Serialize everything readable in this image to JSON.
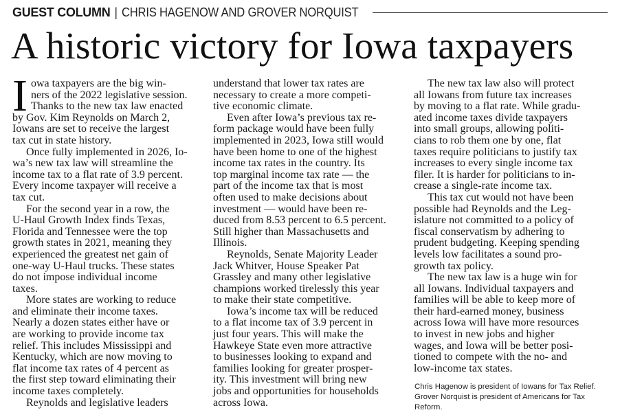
{
  "kicker": {
    "label": "GUEST COLUMN",
    "separator": "|",
    "authors": "CHRIS HAGENOW AND GROVER NORQUIST"
  },
  "headline": "A historic victory for Iowa taxpayers",
  "drop_cap": "I",
  "columns": [
    {
      "paragraphs": [
        {
          "lines": [
            "owa taxpayers are the big win-",
            "ners of the 2022 legislative session.",
            "Thanks to the new tax law enacted",
            "by Gov. Kim Reynolds on March 2,",
            "Iowans are set to receive the largest",
            "tax cut in state history."
          ]
        },
        {
          "lines": [
            "Once fully implemented in 2026, Io-",
            "wa’s new tax law will streamline the",
            "income tax to a flat rate of 3.9 percent.",
            "Every income taxpayer will receive a",
            "tax cut."
          ]
        },
        {
          "lines": [
            "For the second year in a row, the",
            "U-Haul Growth Index finds Texas,",
            "Florida and Tennessee were the top",
            "growth states in 2021, meaning they",
            "experienced the greatest net gain of",
            "one-way U-Haul trucks. These states",
            "do not impose individual income",
            "taxes."
          ]
        },
        {
          "lines": [
            "More states are working to reduce",
            "and eliminate their income taxes.",
            "Nearly a dozen states either have or",
            "are working to provide income tax",
            "relief. This includes Mississippi and",
            "Kentucky, which are now moving to",
            "flat income tax rates of 4 percent as",
            "the first step toward eliminating their",
            "income taxes completely."
          ]
        },
        {
          "lines": [
            "Reynolds and legislative leaders"
          ]
        }
      ]
    },
    {
      "paragraphs": [
        {
          "continued": true,
          "lines": [
            "understand that lower tax rates are",
            "necessary to create a more competi-",
            "tive economic climate."
          ]
        },
        {
          "lines": [
            "Even after Iowa’s previous tax re-",
            "form package would have been fully",
            "implemented in 2023, Iowa still would",
            "have been home to one of the highest",
            "income tax rates in the country. Its",
            "top marginal income tax rate — the",
            "part of the income tax that is most",
            "often used to make decisions about",
            "investment — would have been re-",
            "duced from 8.53 percent to 6.5 percent.",
            "Still higher than Massachusetts and",
            "Illinois."
          ]
        },
        {
          "lines": [
            "Reynolds, Senate Majority Leader",
            "Jack Whitver, House Speaker Pat",
            "Grassley and many other legislative",
            "champions worked tirelessly this year",
            "to make their state competitive."
          ]
        },
        {
          "lines": [
            "Iowa’s income tax will be reduced",
            "to a flat income tax of 3.9 percent in",
            "just four years. This will make the",
            "Hawkeye State even more attractive",
            "to businesses looking to expand and",
            "families looking for greater prosper-",
            "ity. This investment will bring new",
            "jobs and opportunities for households",
            "across Iowa."
          ]
        }
      ]
    },
    {
      "paragraphs": [
        {
          "lines": [
            "The new tax law also will protect",
            "all Iowans from future tax increases",
            "by moving to a flat rate. While gradu-",
            "ated income taxes divide taxpayers",
            "into small groups, allowing politi-",
            "cians to rob them one by one, flat",
            "taxes require politicians to justify tax",
            "increases to every single income tax",
            "filer. It is harder for politicians to in-",
            "crease a single-rate income tax."
          ]
        },
        {
          "lines": [
            "This tax cut would not have been",
            "possible had Reynolds and the Leg-",
            "islature not committed to a policy of",
            "fiscal conservatism by adhering to",
            "prudent budgeting. Keeping spending",
            "levels low facilitates a sound pro-",
            "growth tax policy."
          ]
        },
        {
          "lines": [
            "The new tax law is a huge win for",
            "all Iowans. Individual taxpayers and",
            "families will be able to keep more of",
            "their hard-earned money, business",
            "across Iowa will have more resources",
            "to invest in new jobs and higher",
            "wages, and Iowa will be better posi-",
            "tioned to compete with the no- and",
            "low-income tax states."
          ]
        }
      ]
    }
  ],
  "bio": {
    "lines": [
      "Chris Hagenow is president of Iowans for Tax Relief.",
      "Grover Norquist is president of Americans for Tax",
      "Reform."
    ]
  }
}
